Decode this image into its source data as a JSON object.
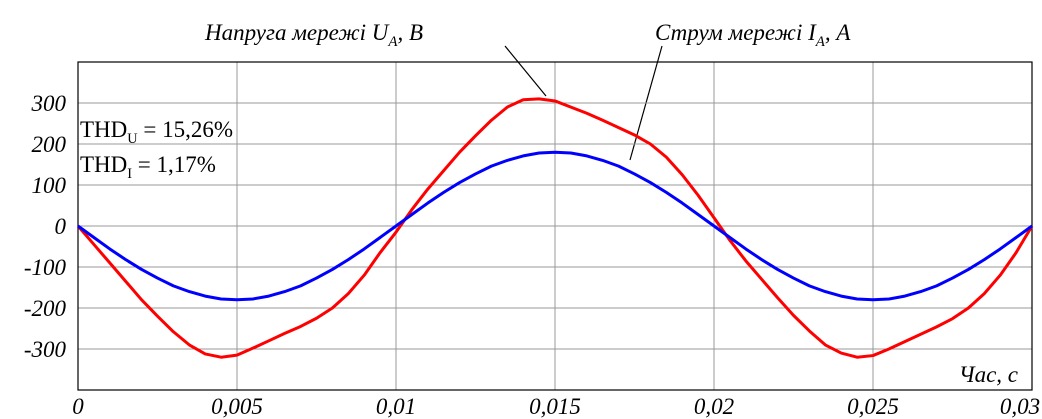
{
  "chart_data": {
    "type": "line",
    "annotations": [
      {
        "text": "Напруга мережі U",
        "sub": "A",
        "suffix": ", В"
      },
      {
        "text": "Струм мережі I",
        "sub": "A",
        "suffix": ", А"
      },
      {
        "text": "THD",
        "sub": "U",
        "suffix": " = 15,26%"
      },
      {
        "text": "THD",
        "sub": "I",
        "suffix": " = 1,17%"
      }
    ],
    "x_label": "Час, с",
    "x": [
      0,
      0.0005,
      0.001,
      0.0015,
      0.002,
      0.0025,
      0.003,
      0.0035,
      0.004,
      0.0045,
      0.005,
      0.0055,
      0.006,
      0.0065,
      0.007,
      0.0075,
      0.008,
      0.0085,
      0.009,
      0.0095,
      0.01,
      0.0105,
      0.011,
      0.0115,
      0.012,
      0.0125,
      0.013,
      0.0135,
      0.014,
      0.0145,
      0.015,
      0.0155,
      0.016,
      0.0165,
      0.017,
      0.0175,
      0.018,
      0.0185,
      0.019,
      0.0195,
      0.02,
      0.0205,
      0.021,
      0.0215,
      0.022,
      0.0225,
      0.023,
      0.0235,
      0.024,
      0.0245,
      0.025,
      0.0255,
      0.026,
      0.0265,
      0.027,
      0.0275,
      0.028,
      0.0285,
      0.029,
      0.0295,
      0.03
    ],
    "series": [
      {
        "color": "#ff0000",
        "values": [
          0,
          -45,
          -90,
          -135,
          -180,
          -220,
          -258,
          -290,
          -312,
          -320,
          -315,
          -298,
          -280,
          -262,
          -245,
          -225,
          -200,
          -165,
          -120,
          -65,
          -15,
          40,
          90,
          135,
          180,
          220,
          258,
          290,
          308,
          310,
          305,
          290,
          275,
          258,
          240,
          222,
          200,
          168,
          125,
          75,
          20,
          -35,
          -85,
          -130,
          -175,
          -218,
          -256,
          -290,
          -310,
          -320,
          -316,
          -300,
          -282,
          -264,
          -246,
          -226,
          -200,
          -165,
          -120,
          -65,
          0
        ]
      },
      {
        "color": "#0000ff",
        "values": [
          0,
          -28,
          -56,
          -82,
          -106,
          -127,
          -146,
          -160,
          -171,
          -178,
          -180,
          -178,
          -171,
          -160,
          -146,
          -127,
          -106,
          -82,
          -56,
          -28,
          0,
          28,
          56,
          82,
          106,
          127,
          146,
          160,
          171,
          178,
          180,
          178,
          171,
          160,
          146,
          127,
          106,
          82,
          56,
          28,
          0,
          -28,
          -56,
          -82,
          -106,
          -127,
          -146,
          -160,
          -171,
          -178,
          -180,
          -178,
          -171,
          -160,
          -146,
          -127,
          -106,
          -82,
          -56,
          -28,
          0
        ]
      }
    ],
    "xlim": [
      0,
      0.03
    ],
    "xticks": [
      0,
      {
        "value": 0.005,
        "label": "0,005"
      },
      {
        "value": 0.01,
        "label": "0,01"
      },
      {
        "value": 0.015,
        "label": "0,015"
      },
      {
        "value": 0.02,
        "label": "0,02"
      },
      {
        "value": 0.025,
        "label": "0,025"
      },
      {
        "value": 0.03,
        "label": "0,03"
      }
    ],
    "ylim": [
      -400,
      400
    ],
    "yticks": [
      -300,
      -200,
      -100,
      0,
      100,
      200,
      300
    ],
    "grid": true
  }
}
